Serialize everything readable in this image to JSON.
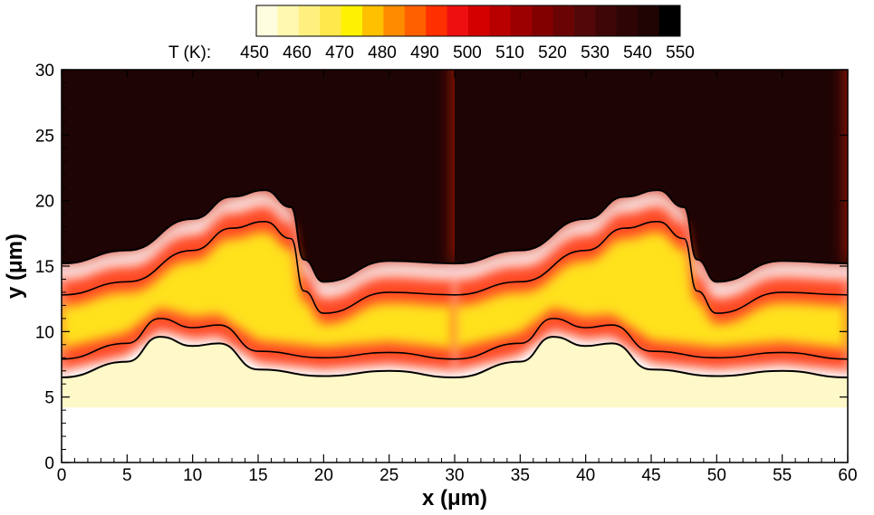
{
  "chart_data": {
    "type": "heatmap",
    "title": "",
    "xlabel": "x (μm)",
    "ylabel": "y (μm)",
    "xlim": [
      0,
      60
    ],
    "ylim": [
      0,
      30
    ],
    "x_ticks": [
      0,
      5,
      10,
      15,
      20,
      25,
      30,
      35,
      40,
      45,
      50,
      55,
      60
    ],
    "y_ticks": [
      0,
      5,
      10,
      15,
      20,
      25,
      30
    ],
    "x_tick_labels": [
      "0",
      "5",
      "10",
      "15",
      "20",
      "25",
      "30",
      "35",
      "40",
      "45",
      "50",
      "55",
      "60"
    ],
    "y_tick_labels": [
      "0",
      "5",
      "10",
      "15",
      "20",
      "25",
      "30"
    ],
    "grid": false,
    "colorbar": {
      "label": "T (K):",
      "placement": "top",
      "levels": [
        450,
        460,
        470,
        480,
        490,
        500,
        510,
        520,
        530,
        540,
        550
      ],
      "level_labels": [
        "450",
        "460",
        "470",
        "480",
        "490",
        "500",
        "510",
        "520",
        "530",
        "540",
        "550"
      ],
      "colors": [
        "#fffde0",
        "#fff8b0",
        "#fff080",
        "#ffe94a",
        "#fff200",
        "#ffc000",
        "#ff8c00",
        "#ff6000",
        "#ff3000",
        "#ee1010",
        "#d40000",
        "#b80000",
        "#9c0000",
        "#820000",
        "#6a0404",
        "#520808",
        "#3e0606",
        "#2e0404",
        "#200404",
        "#000000"
      ]
    },
    "field": {
      "quantity": "T (K)",
      "hot_value": 550,
      "cold_value": 450,
      "period_x": 30,
      "interface_y": [
        {
          "x": 0,
          "y": 15.2
        },
        {
          "x": 5,
          "y": 16.2
        },
        {
          "x": 10,
          "y": 18.6
        },
        {
          "x": 13,
          "y": 20.3
        },
        {
          "x": 15.5,
          "y": 20.8
        },
        {
          "x": 17.5,
          "y": 19.5
        },
        {
          "x": 18.5,
          "y": 15.5
        },
        {
          "x": 20,
          "y": 13.8
        },
        {
          "x": 25,
          "y": 15.4
        },
        {
          "x": 30,
          "y": 15.2
        }
      ],
      "cold_band_top_y": [
        {
          "x": 0,
          "y": 6.5
        },
        {
          "x": 5,
          "y": 7.7
        },
        {
          "x": 7.5,
          "y": 9.6
        },
        {
          "x": 10,
          "y": 8.9
        },
        {
          "x": 12,
          "y": 9.1
        },
        {
          "x": 15,
          "y": 7.1
        },
        {
          "x": 20,
          "y": 6.6
        },
        {
          "x": 25,
          "y": 7.0
        },
        {
          "x": 30,
          "y": 6.5
        }
      ]
    }
  }
}
